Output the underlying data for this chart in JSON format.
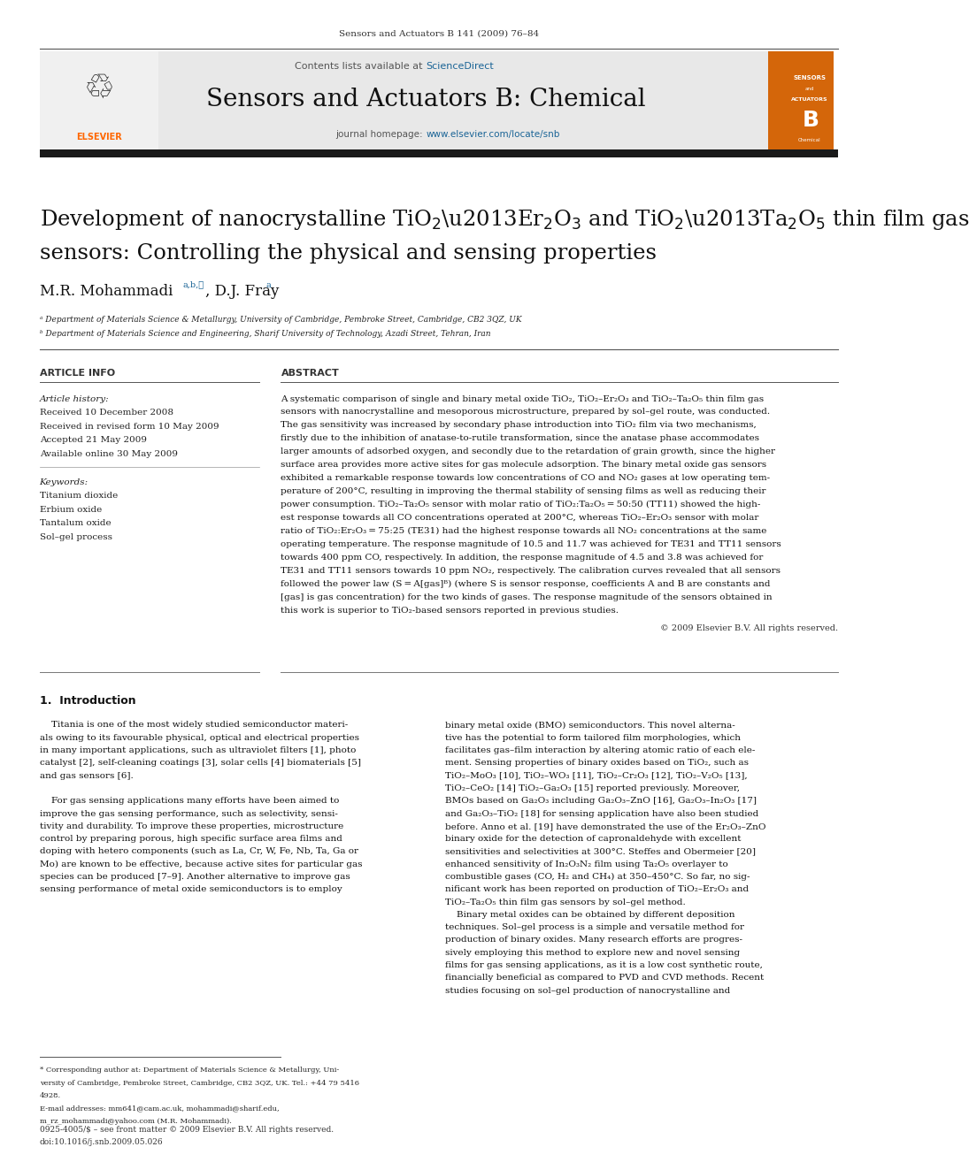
{
  "page_width": 9.92,
  "page_height": 13.23,
  "bg_color": "#ffffff",
  "header_journal": "Sensors and Actuators B 141 (2009) 76–84",
  "journal_banner_bg": "#e8e8e8",
  "journal_name": "Sensors and Actuators B: Chemical",
  "sciencedirect_color": "#1a6496",
  "url_color": "#1a6496",
  "article_info_header": "ARTICLE INFO",
  "abstract_header": "ABSTRACT",
  "article_history_label": "Article history:",
  "received1": "Received 10 December 2008",
  "received2": "Received in revised form 10 May 2009",
  "accepted": "Accepted 21 May 2009",
  "available": "Available online 30 May 2009",
  "keywords_label": "Keywords:",
  "kw1": "Titanium dioxide",
  "kw2": "Erbium oxide",
  "kw3": "Tantalum oxide",
  "kw4": "Sol–gel process",
  "affil_a": "ᵃ Department of Materials Science & Metallurgy, University of Cambridge, Pembroke Street, Cambridge, CB2 3QZ, UK",
  "affil_b": "ᵇ Department of Materials Science and Engineering, Sharif University of Technology, Azadi Street, Tehran, Iran",
  "copyright": "© 2009 Elsevier B.V. All rights reserved.",
  "section1_title": "1.  Introduction",
  "footnote1a": "* Corresponding author at: Department of Materials Science & Metallurgy, Uni-",
  "footnote1b": "versity of Cambridge, Pembroke Street, Cambridge, CB2 3QZ, UK. Tel.: +44 79 5416",
  "footnote1c": "4928.",
  "footnote2a": "E-mail addresses: mm641@cam.ac.uk, mohammadi@sharif.edu,",
  "footnote2b": "m_rz_mohammadi@yahoo.com (M.R. Mohammadi).",
  "footer1": "0925-4005/$ – see front matter © 2009 Elsevier B.V. All rights reserved.",
  "footer2": "doi:10.1016/j.snb.2009.05.026",
  "abstract_lines": [
    "A systematic comparison of single and binary metal oxide TiO₂, TiO₂–Er₂O₃ and TiO₂–Ta₂O₅ thin film gas",
    "sensors with nanocrystalline and mesoporous microstructure, prepared by sol–gel route, was conducted.",
    "The gas sensitivity was increased by secondary phase introduction into TiO₂ film via two mechanisms,",
    "firstly due to the inhibition of anatase-to-rutile transformation, since the anatase phase accommodates",
    "larger amounts of adsorbed oxygen, and secondly due to the retardation of grain growth, since the higher",
    "surface area provides more active sites for gas molecule adsorption. The binary metal oxide gas sensors",
    "exhibited a remarkable response towards low concentrations of CO and NO₂ gases at low operating tem-",
    "perature of 200°C, resulting in improving the thermal stability of sensing films as well as reducing their",
    "power consumption. TiO₂–Ta₂O₅ sensor with molar ratio of TiO₂:Ta₂O₅ = 50:50 (TT11) showed the high-",
    "est response towards all CO concentrations operated at 200°C, whereas TiO₂–Er₂O₃ sensor with molar",
    "ratio of TiO₂:Er₂O₃ = 75:25 (TE31) had the highest response towards all NO₂ concentrations at the same",
    "operating temperature. The response magnitude of 10.5 and 11.7 was achieved for TE31 and TT11 sensors",
    "towards 400 ppm CO, respectively. In addition, the response magnitude of 4.5 and 3.8 was achieved for",
    "TE31 and TT11 sensors towards 10 ppm NO₂, respectively. The calibration curves revealed that all sensors",
    "followed the power law (S = A[gas]ᴮ) (where S is sensor response, coefficients A and B are constants and",
    "[gas] is gas concentration) for the two kinds of gases. The response magnitude of the sensors obtained in",
    "this work is superior to TiO₂-based sensors reported in previous studies."
  ],
  "intro_left_lines": [
    "    Titania is one of the most widely studied semiconductor materi-",
    "als owing to its favourable physical, optical and electrical properties",
    "in many important applications, such as ultraviolet filters [1], photo",
    "catalyst [2], self-cleaning coatings [3], solar cells [4] biomaterials [5]",
    "and gas sensors [6].",
    "",
    "    For gas sensing applications many efforts have been aimed to",
    "improve the gas sensing performance, such as selectivity, sensi-",
    "tivity and durability. To improve these properties, microstructure",
    "control by preparing porous, high specific surface area films and",
    "doping with hetero components (such as La, Cr, W, Fe, Nb, Ta, Ga or",
    "Mo) are known to be effective, because active sites for particular gas",
    "species can be produced [7–9]. Another alternative to improve gas",
    "sensing performance of metal oxide semiconductors is to employ"
  ],
  "intro_right_lines": [
    "binary metal oxide (BMO) semiconductors. This novel alterna-",
    "tive has the potential to form tailored film morphologies, which",
    "facilitates gas–film interaction by altering atomic ratio of each ele-",
    "ment. Sensing properties of binary oxides based on TiO₂, such as",
    "TiO₂–MoO₃ [10], TiO₂–WO₃ [11], TiO₂–Cr₂O₃ [12], TiO₂–V₂O₅ [13],",
    "TiO₂–CeO₂ [14] TiO₂–Ga₂O₃ [15] reported previously. Moreover,",
    "BMOs based on Ga₂O₃ including Ga₂O₃–ZnO [16], Ga₂O₃–In₂O₃ [17]",
    "and Ga₂O₃–TiO₂ [18] for sensing application have also been studied",
    "before. Anno et al. [19] have demonstrated the use of the Er₂O₃–ZnO",
    "binary oxide for the detection of capronaldehyde with excellent",
    "sensitivities and selectivities at 300°C. Steffes and Obermeier [20]",
    "enhanced sensitivity of In₂O₃N₂ film using Ta₂O₅ overlayer to",
    "combustible gases (CO, H₂ and CH₄) at 350–450°C. So far, no sig-",
    "nificant work has been reported on production of TiO₂–Er₂O₃ and",
    "TiO₂–Ta₂O₅ thin film gas sensors by sol–gel method.",
    "    Binary metal oxides can be obtained by different deposition",
    "techniques. Sol–gel process is a simple and versatile method for",
    "production of binary oxides. Many research efforts are progres-",
    "sively employing this method to explore new and novel sensing",
    "films for gas sensing applications, as it is a low cost synthetic route,",
    "financially beneficial as compared to PVD and CVD methods. Recent",
    "studies focusing on sol–gel production of nanocrystalline and"
  ]
}
